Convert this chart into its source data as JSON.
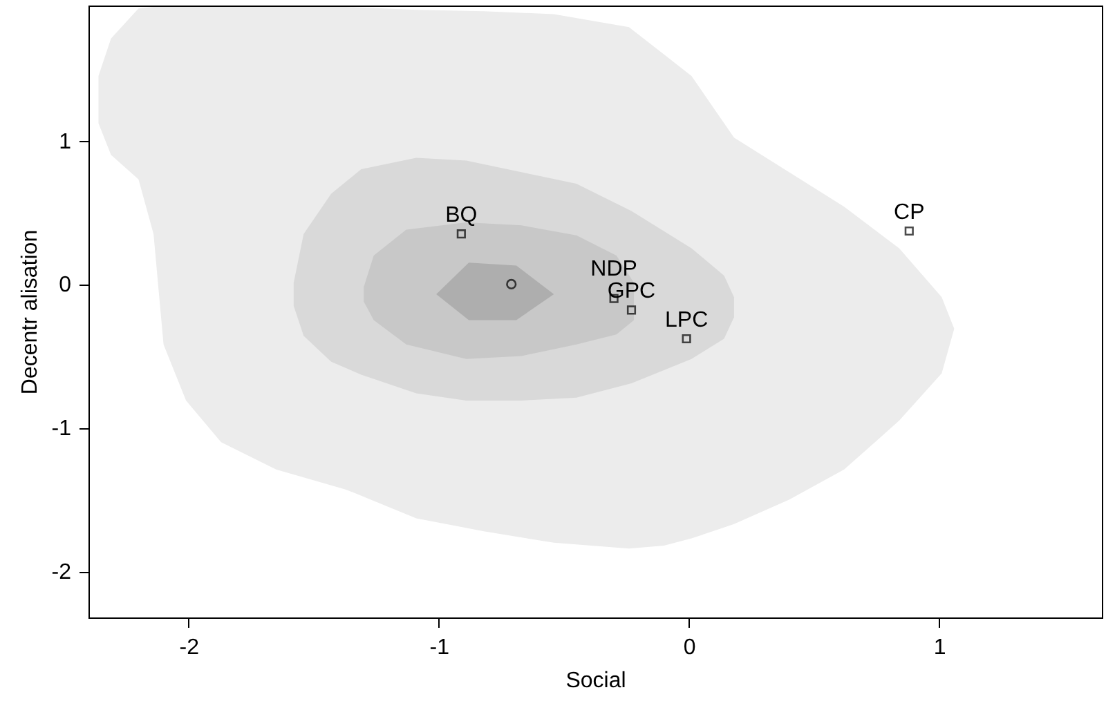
{
  "chart_data": {
    "type": "scatter",
    "xlabel": "Social",
    "ylabel": "Decentr alisation",
    "xlim": [
      -2.4,
      1.65
    ],
    "ylim": [
      -2.32,
      1.94
    ],
    "xticks": [
      -2,
      -1,
      0,
      1
    ],
    "yticks": [
      -2,
      -1,
      0,
      1
    ],
    "grid": false,
    "marker": "square",
    "series": [
      {
        "type": "area",
        "color": "#ececec",
        "x": [
          -2.36,
          -2.31,
          -2.2,
          -2.14,
          -2.1,
          -2.01,
          -1.87,
          -1.65,
          -1.37,
          -1.09,
          -0.82,
          -0.54,
          -0.24,
          -0.1,
          0.01,
          0.18,
          0.4,
          0.62,
          0.84,
          1.01,
          1.06
        ],
        "values": [
          null,
          null,
          null,
          null,
          null,
          null,
          null,
          null,
          null,
          null,
          null,
          null,
          null,
          null,
          null,
          null,
          null,
          null,
          null,
          null,
          null
        ],
        "upper": [
          1.45,
          1.71,
          1.92,
          1.93,
          1.93,
          1.93,
          1.93,
          1.93,
          1.93,
          1.91,
          1.9,
          1.88,
          1.79,
          1.6,
          1.45,
          1.02,
          0.78,
          0.54,
          0.25,
          -0.09,
          -0.31
        ],
        "lower": [
          1.12,
          0.9,
          0.73,
          0.35,
          -0.42,
          -0.81,
          -1.1,
          -1.29,
          -1.43,
          -1.63,
          -1.72,
          -1.8,
          -1.84,
          -1.82,
          -1.77,
          -1.67,
          -1.5,
          -1.29,
          -0.95,
          -0.62,
          -0.31
        ]
      },
      {
        "type": "area",
        "color": "#d9d9d9",
        "x": [
          -1.58,
          -1.54,
          -1.43,
          -1.31,
          -1.09,
          -0.89,
          -0.67,
          -0.45,
          -0.23,
          0.01,
          0.14,
          0.18
        ],
        "values": [
          null,
          null,
          null,
          null,
          null,
          null,
          null,
          null,
          null,
          null,
          null,
          null
        ],
        "upper": [
          0.01,
          0.35,
          0.63,
          0.8,
          0.88,
          0.86,
          0.78,
          0.7,
          0.51,
          0.25,
          0.06,
          -0.09
        ],
        "lower": [
          -0.15,
          -0.36,
          -0.54,
          -0.63,
          -0.76,
          -0.81,
          -0.81,
          -0.79,
          -0.69,
          -0.52,
          -0.38,
          -0.23
        ]
      },
      {
        "type": "area",
        "color": "#c8c8c8",
        "x": [
          -1.3,
          -1.26,
          -1.13,
          -0.89,
          -0.67,
          -0.45,
          -0.29,
          -0.22
        ],
        "values": [
          null,
          null,
          null,
          null,
          null,
          null,
          null,
          null
        ],
        "upper": [
          -0.02,
          0.2,
          0.38,
          0.43,
          0.41,
          0.34,
          0.2,
          0.01
        ],
        "lower": [
          -0.12,
          -0.25,
          -0.42,
          -0.52,
          -0.5,
          -0.42,
          -0.35,
          -0.25
        ]
      },
      {
        "type": "area",
        "color": "#aeaeae",
        "x": [
          -1.01,
          -0.88,
          -0.69,
          -0.54
        ],
        "values": [
          null,
          null,
          null,
          null
        ],
        "upper": [
          -0.07,
          0.15,
          0.13,
          -0.07
        ],
        "lower": [
          -0.07,
          -0.25,
          -0.25,
          -0.07
        ]
      },
      {
        "color": "#000000",
        "x": [
          -0.91,
          -0.3,
          -0.23,
          -0.01,
          0.88
        ],
        "values": [
          0.35,
          -0.1,
          -0.18,
          -0.38,
          0.37
        ]
      },
      {
        "color": "#000000",
        "marker": "circle",
        "x": [
          -0.71
        ],
        "values": [
          0.0
        ]
      }
    ],
    "annotations": [
      {
        "text": "BQ",
        "x": -0.91,
        "y": 0.35
      },
      {
        "text": "NDP",
        "x": -0.3,
        "y": -0.1
      },
      {
        "text": "GPC",
        "x": -0.23,
        "y": -0.18
      },
      {
        "text": "LPC",
        "x": -0.01,
        "y": -0.38
      },
      {
        "text": "CP",
        "x": 0.88,
        "y": 0.37
      }
    ]
  }
}
